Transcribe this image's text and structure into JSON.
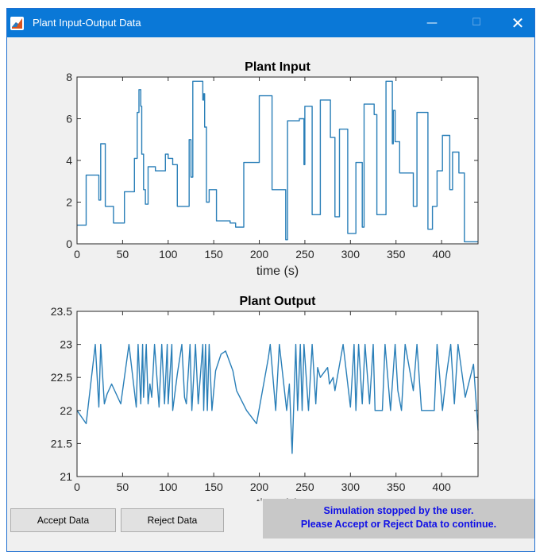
{
  "window": {
    "title": "Plant Input-Output Data",
    "controls": {
      "minimize": "—",
      "maximize": "☐",
      "close": "✕"
    }
  },
  "buttons": {
    "accept": "Accept Data",
    "reject": "Reject Data"
  },
  "status": {
    "line1": "Simulation stopped by the user.",
    "line2": "Please Accept or Reject Data to continue."
  },
  "chart_data": [
    {
      "type": "line",
      "title": "Plant Input",
      "xlabel": "time (s)",
      "ylabel": "",
      "xlim": [
        0,
        440
      ],
      "ylim": [
        0,
        8
      ],
      "x_ticks": [
        0,
        50,
        100,
        150,
        200,
        250,
        300,
        350,
        400
      ],
      "y_ticks": [
        0,
        2,
        4,
        6,
        8
      ],
      "color": "#2a7fb8",
      "series": [
        {
          "x": [
            0,
            10,
            10,
            24,
            24,
            26,
            26,
            31,
            31,
            40,
            40,
            52,
            52,
            56,
            56,
            63,
            63,
            66,
            66,
            68,
            68,
            70,
            70,
            71,
            71,
            73,
            73,
            75,
            75,
            78,
            78,
            86,
            86,
            97,
            97,
            100,
            100,
            105,
            105,
            108,
            108,
            110,
            110,
            123,
            123,
            125,
            125,
            127,
            127,
            138,
            138,
            139,
            139,
            140,
            140,
            142,
            142,
            145,
            145,
            153,
            153,
            168,
            168,
            170,
            170,
            174,
            174,
            183,
            183,
            196,
            196,
            200,
            200,
            214,
            214,
            229,
            229,
            231,
            231,
            244,
            244,
            249,
            249,
            250,
            250,
            258,
            258,
            267,
            267,
            278,
            278,
            283,
            283,
            288,
            288,
            297,
            297,
            306,
            306,
            313,
            313,
            315,
            315,
            326,
            326,
            329,
            329,
            339,
            339,
            346,
            346,
            347,
            347,
            349,
            349,
            354,
            354,
            369,
            369,
            373,
            373,
            385,
            385,
            390,
            390,
            395,
            395,
            401,
            401,
            409,
            409,
            412,
            412,
            419,
            419,
            425,
            425,
            440
          ],
          "y": [
            0.9,
            0.9,
            3.3,
            3.3,
            2.1,
            2.1,
            4.8,
            4.8,
            1.8,
            1.8,
            1.0,
            1.0,
            2.5,
            2.5,
            2.5,
            2.5,
            4.1,
            4.1,
            6.3,
            6.3,
            7.4,
            7.4,
            6.6,
            6.6,
            4.3,
            4.3,
            2.6,
            2.6,
            1.9,
            1.9,
            3.7,
            3.7,
            3.5,
            3.5,
            4.3,
            4.3,
            4.1,
            4.1,
            3.8,
            3.8,
            3.8,
            3.8,
            1.8,
            1.8,
            5.0,
            5.0,
            3.2,
            3.2,
            7.8,
            7.8,
            6.9,
            6.9,
            7.2,
            7.2,
            5.6,
            5.6,
            2.0,
            2.0,
            2.6,
            2.6,
            1.1,
            1.1,
            1.0,
            1.0,
            1.0,
            1.0,
            0.8,
            0.8,
            3.9,
            3.9,
            3.9,
            3.9,
            7.1,
            7.1,
            2.6,
            2.6,
            0.2,
            0.2,
            5.9,
            5.9,
            6.0,
            6.0,
            3.8,
            3.8,
            6.6,
            6.6,
            1.4,
            1.4,
            6.9,
            6.9,
            5.1,
            5.1,
            1.3,
            1.3,
            5.5,
            5.5,
            0.5,
            0.5,
            3.9,
            3.9,
            0.8,
            0.8,
            6.7,
            6.7,
            6.2,
            6.2,
            1.4,
            1.4,
            7.8,
            7.8,
            4.8,
            4.8,
            6.4,
            6.4,
            4.9,
            4.9,
            3.4,
            3.4,
            1.8,
            1.8,
            6.3,
            6.3,
            0.7,
            0.7,
            1.8,
            1.8,
            3.5,
            3.5,
            5.2,
            5.2,
            2.6,
            2.6,
            4.4,
            4.4,
            3.4,
            3.4,
            0.1,
            0.1
          ]
        }
      ]
    },
    {
      "type": "line",
      "title": "Plant Output",
      "xlabel": "time (s)",
      "ylabel": "",
      "xlim": [
        0,
        440
      ],
      "ylim": [
        21,
        23.5
      ],
      "x_ticks": [
        0,
        50,
        100,
        150,
        200,
        250,
        300,
        350,
        400
      ],
      "y_ticks": [
        21,
        21.5,
        22,
        22.5,
        23,
        23.5
      ],
      "color": "#2a7fb8",
      "series": [
        {
          "x": [
            0,
            10,
            20,
            24,
            26,
            30,
            33,
            38,
            48,
            57,
            65,
            67,
            70,
            72,
            73,
            76,
            78,
            80,
            82,
            85,
            90,
            93,
            96,
            99,
            100,
            104,
            105,
            110,
            115,
            118,
            120,
            124,
            126,
            130,
            133,
            138,
            139,
            141,
            143,
            145,
            148,
            152,
            158,
            163,
            171,
            175,
            186,
            197,
            210,
            212,
            218,
            222,
            230,
            233,
            236,
            240,
            242,
            245,
            247,
            249,
            254,
            258,
            262,
            264,
            267,
            275,
            277,
            281,
            283,
            292,
            300,
            304,
            306,
            309,
            313,
            316,
            321,
            325,
            327,
            335,
            338,
            344,
            349,
            352,
            356,
            360,
            369,
            373,
            378,
            392,
            395,
            401,
            405,
            410,
            414,
            418,
            426,
            435,
            440
          ],
          "y": [
            22.0,
            21.8,
            23.0,
            22.05,
            23.0,
            22.1,
            22.25,
            22.4,
            22.1,
            23.0,
            22.05,
            23.0,
            22.1,
            23.0,
            22.2,
            23.0,
            22.1,
            22.4,
            22.2,
            23.0,
            22.05,
            23.0,
            22.1,
            23.0,
            22.1,
            23.0,
            22.0,
            22.55,
            23.0,
            22.2,
            22.1,
            23.0,
            22.0,
            23.0,
            22.1,
            23.0,
            22.0,
            23.0,
            22.0,
            23.0,
            22.0,
            22.6,
            22.85,
            22.9,
            22.6,
            22.3,
            22.0,
            21.8,
            22.8,
            23.0,
            22.0,
            23.0,
            22.0,
            22.4,
            21.35,
            23.0,
            22.0,
            23.0,
            22.0,
            23.0,
            22.0,
            23.0,
            22.1,
            22.65,
            22.5,
            22.65,
            22.4,
            22.5,
            22.3,
            23.0,
            22.05,
            23.0,
            22.0,
            23.0,
            22.1,
            23.0,
            22.1,
            23.0,
            22.0,
            22.0,
            23.0,
            22.0,
            23.0,
            22.3,
            22.0,
            23.0,
            22.3,
            23.0,
            22.0,
            22.0,
            23.0,
            22.0,
            22.5,
            23.0,
            22.1,
            23.0,
            22.2,
            22.7,
            21.7
          ]
        }
      ]
    }
  ]
}
